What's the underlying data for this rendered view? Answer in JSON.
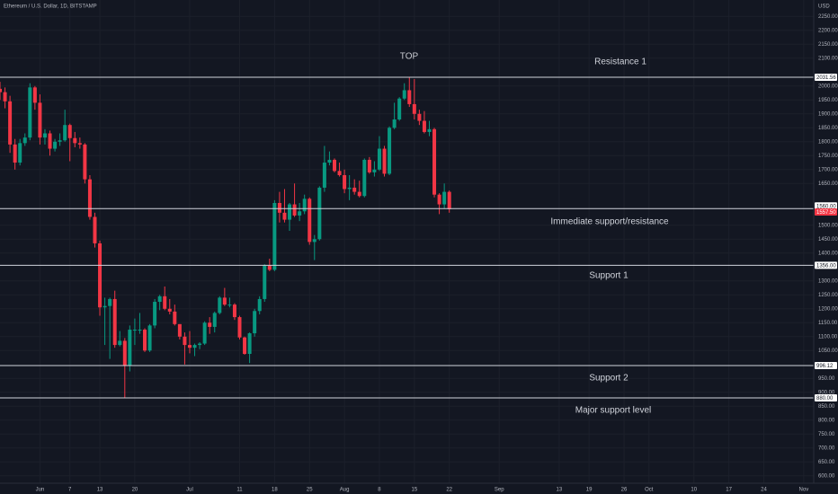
{
  "chart_data": {
    "type": "candlestick",
    "title": "Ethereum / U.S. Dollar, 1D, BITSTAMP",
    "currency": "USD",
    "up_color": "#089981",
    "down_color": "#f23645",
    "grid": true,
    "x": [
      "05-24",
      "05-25",
      "05-26",
      "05-27",
      "05-28",
      "05-29",
      "05-30",
      "05-31",
      "06-01",
      "06-02",
      "06-03",
      "06-04",
      "06-05",
      "06-06",
      "06-07",
      "06-08",
      "06-09",
      "06-10",
      "06-11",
      "06-12",
      "06-13",
      "06-14",
      "06-15",
      "06-16",
      "06-17",
      "06-18",
      "06-19",
      "06-20",
      "06-21",
      "06-22",
      "06-23",
      "06-24",
      "06-25",
      "06-26",
      "06-27",
      "06-28",
      "06-29",
      "06-30",
      "07-01",
      "07-02",
      "07-03",
      "07-04",
      "07-05",
      "07-06",
      "07-07",
      "07-08",
      "07-09",
      "07-10",
      "07-11",
      "07-12",
      "07-13",
      "07-14",
      "07-15",
      "07-16",
      "07-17",
      "07-18",
      "07-19",
      "07-20",
      "07-21",
      "07-22",
      "07-23",
      "07-24",
      "07-25",
      "07-26",
      "07-27",
      "07-28",
      "07-29",
      "07-30",
      "07-31",
      "08-01",
      "08-02",
      "08-03",
      "08-04",
      "08-05",
      "08-06",
      "08-07",
      "08-08",
      "08-09",
      "08-10",
      "08-11",
      "08-12",
      "08-13",
      "08-14",
      "08-15",
      "08-16",
      "08-17",
      "08-18",
      "08-19",
      "08-20",
      "08-21",
      "08-22"
    ],
    "open": [
      1990,
      1978,
      1945,
      1790,
      1725,
      1795,
      1815,
      1995,
      1940,
      1815,
      1830,
      1775,
      1800,
      1805,
      1860,
      1813,
      1795,
      1790,
      1665,
      1530,
      1435,
      1205,
      1210,
      1235,
      1070,
      1085,
      995,
      1125,
      1125,
      1125,
      1050,
      1140,
      1225,
      1245,
      1200,
      1190,
      1145,
      1100,
      1070,
      1060,
      1070,
      1075,
      1150,
      1135,
      1185,
      1240,
      1215,
      1215,
      1170,
      1097,
      1038,
      1112,
      1192,
      1235,
      1355,
      1340,
      1580,
      1545,
      1520,
      1575,
      1535,
      1550,
      1595,
      1440,
      1450,
      1635,
      1725,
      1735,
      1695,
      1680,
      1630,
      1635,
      1620,
      1605,
      1735,
      1690,
      1700,
      1775,
      1685,
      1850,
      1880,
      1955,
      1985,
      1935,
      1900,
      1875,
      1835,
      1845,
      1610,
      1575,
      1620
    ],
    "high": [
      2015,
      1995,
      1965,
      1810,
      1810,
      1830,
      2010,
      2000,
      1970,
      1845,
      1840,
      1810,
      1830,
      1915,
      1865,
      1835,
      1815,
      1795,
      1680,
      1545,
      1445,
      1240,
      1240,
      1265,
      1120,
      1095,
      1140,
      1165,
      1185,
      1130,
      1145,
      1235,
      1250,
      1280,
      1235,
      1215,
      1145,
      1115,
      1120,
      1075,
      1080,
      1155,
      1170,
      1190,
      1245,
      1275,
      1240,
      1220,
      1175,
      1100,
      1115,
      1200,
      1245,
      1360,
      1380,
      1590,
      1620,
      1630,
      1580,
      1650,
      1580,
      1610,
      1600,
      1465,
      1640,
      1785,
      1765,
      1740,
      1725,
      1700,
      1680,
      1665,
      1660,
      1740,
      1745,
      1730,
      1820,
      1785,
      1855,
      1940,
      1960,
      2010,
      2030,
      2025,
      1915,
      1910,
      1875,
      1850,
      1615,
      1650,
      1625
    ],
    "low": [
      1950,
      1920,
      1760,
      1700,
      1715,
      1785,
      1805,
      1915,
      1790,
      1790,
      1750,
      1765,
      1785,
      1800,
      1730,
      1780,
      1775,
      1650,
      1520,
      1420,
      1175,
      1070,
      1020,
      1060,
      1065,
      880,
      975,
      1070,
      1110,
      1045,
      1045,
      1130,
      1195,
      1195,
      1180,
      1140,
      1090,
      1000,
      1040,
      1030,
      1055,
      1070,
      1110,
      1115,
      1180,
      1210,
      1205,
      1160,
      1090,
      1035,
      1005,
      1100,
      1180,
      1225,
      1335,
      1335,
      1510,
      1510,
      1480,
      1530,
      1515,
      1540,
      1430,
      1375,
      1445,
      1620,
      1715,
      1690,
      1675,
      1615,
      1590,
      1610,
      1600,
      1600,
      1685,
      1675,
      1695,
      1675,
      1680,
      1845,
      1875,
      1950,
      1925,
      1880,
      1860,
      1830,
      1820,
      1600,
      1540,
      1560,
      1545
    ],
    "close": [
      1978,
      1945,
      1790,
      1725,
      1795,
      1815,
      1995,
      1940,
      1815,
      1830,
      1775,
      1800,
      1805,
      1860,
      1813,
      1795,
      1790,
      1665,
      1530,
      1435,
      1205,
      1210,
      1235,
      1070,
      1085,
      995,
      1125,
      1125,
      1125,
      1050,
      1140,
      1225,
      1245,
      1200,
      1190,
      1145,
      1100,
      1070,
      1060,
      1070,
      1075,
      1150,
      1135,
      1185,
      1240,
      1215,
      1215,
      1170,
      1097,
      1038,
      1112,
      1192,
      1235,
      1355,
      1340,
      1580,
      1545,
      1520,
      1575,
      1535,
      1550,
      1595,
      1440,
      1450,
      1635,
      1725,
      1735,
      1695,
      1680,
      1630,
      1635,
      1620,
      1605,
      1735,
      1690,
      1700,
      1775,
      1685,
      1850,
      1880,
      1955,
      1985,
      1935,
      1900,
      1875,
      1835,
      1845,
      1610,
      1575,
      1620,
      1557.5
    ],
    "xlim": [
      "05-24",
      "11-03"
    ],
    "xticks": [
      {
        "value": "06-01",
        "label": "Jun"
      },
      {
        "value": "06-07",
        "label": "7"
      },
      {
        "value": "06-13",
        "label": "13"
      },
      {
        "value": "06-20",
        "label": "20"
      },
      {
        "value": "07-01",
        "label": "Jul"
      },
      {
        "value": "07-11",
        "label": "11"
      },
      {
        "value": "07-18",
        "label": "18"
      },
      {
        "value": "07-25",
        "label": "25"
      },
      {
        "value": "08-01",
        "label": "Aug"
      },
      {
        "value": "08-08",
        "label": "8"
      },
      {
        "value": "08-15",
        "label": "15"
      },
      {
        "value": "08-22",
        "label": "22"
      },
      {
        "value": "09-01",
        "label": "Sep"
      },
      {
        "value": "09-13",
        "label": "13"
      },
      {
        "value": "09-19",
        "label": "19"
      },
      {
        "value": "09-26",
        "label": "26"
      },
      {
        "value": "10-01",
        "label": "Oct"
      },
      {
        "value": "10-10",
        "label": "10"
      },
      {
        "value": "10-17",
        "label": "17"
      },
      {
        "value": "10-24",
        "label": "24"
      },
      {
        "value": "11-01",
        "label": "Nov"
      }
    ],
    "ylim": [
      573.5,
      2309
    ],
    "yticks": [
      {
        "value": 600,
        "label": "600.00"
      },
      {
        "value": 650,
        "label": "650.00"
      },
      {
        "value": 700,
        "label": "700.00"
      },
      {
        "value": 750,
        "label": "750.00"
      },
      {
        "value": 800,
        "label": "800.00"
      },
      {
        "value": 850,
        "label": "850.00"
      },
      {
        "value": 900,
        "label": "900.00"
      },
      {
        "value": 950,
        "label": "950.00"
      },
      {
        "value": 1050,
        "label": "1050.00"
      },
      {
        "value": 1100,
        "label": "1100.00"
      },
      {
        "value": 1150,
        "label": "1150.00"
      },
      {
        "value": 1200,
        "label": "1200.00"
      },
      {
        "value": 1250,
        "label": "1250.00"
      },
      {
        "value": 1300,
        "label": "1300.00"
      },
      {
        "value": 1400,
        "label": "1400.00"
      },
      {
        "value": 1450,
        "label": "1450.00"
      },
      {
        "value": 1500,
        "label": "1500.00"
      },
      {
        "value": 1650,
        "label": "1650.00"
      },
      {
        "value": 1700,
        "label": "1700.00"
      },
      {
        "value": 1750,
        "label": "1750.00"
      },
      {
        "value": 1800,
        "label": "1800.00"
      },
      {
        "value": 1850,
        "label": "1850.00"
      },
      {
        "value": 1900,
        "label": "1900.00"
      },
      {
        "value": 1950,
        "label": "1950.00"
      },
      {
        "value": 2000,
        "label": "2000.00"
      },
      {
        "value": 2100,
        "label": "2100.00"
      },
      {
        "value": 2150,
        "label": "2150.00"
      },
      {
        "value": 2200,
        "label": "2200.00"
      },
      {
        "value": 2250,
        "label": "2250.00"
      }
    ],
    "levels": [
      2031.56,
      {
        "value": 1560,
        "label": "1560.00"
      },
      {
        "value": 1356,
        "label": "1356.00"
      },
      996.12,
      {
        "value": 880,
        "label": "880.00"
      }
    ],
    "last_price": {
      "value": 1557.5,
      "label": "1557.50"
    },
    "annotations": [
      "TOP",
      "Resistance 1",
      "Immediate support/resistance",
      "Support 1",
      "Support 2",
      "Major support level"
    ]
  }
}
